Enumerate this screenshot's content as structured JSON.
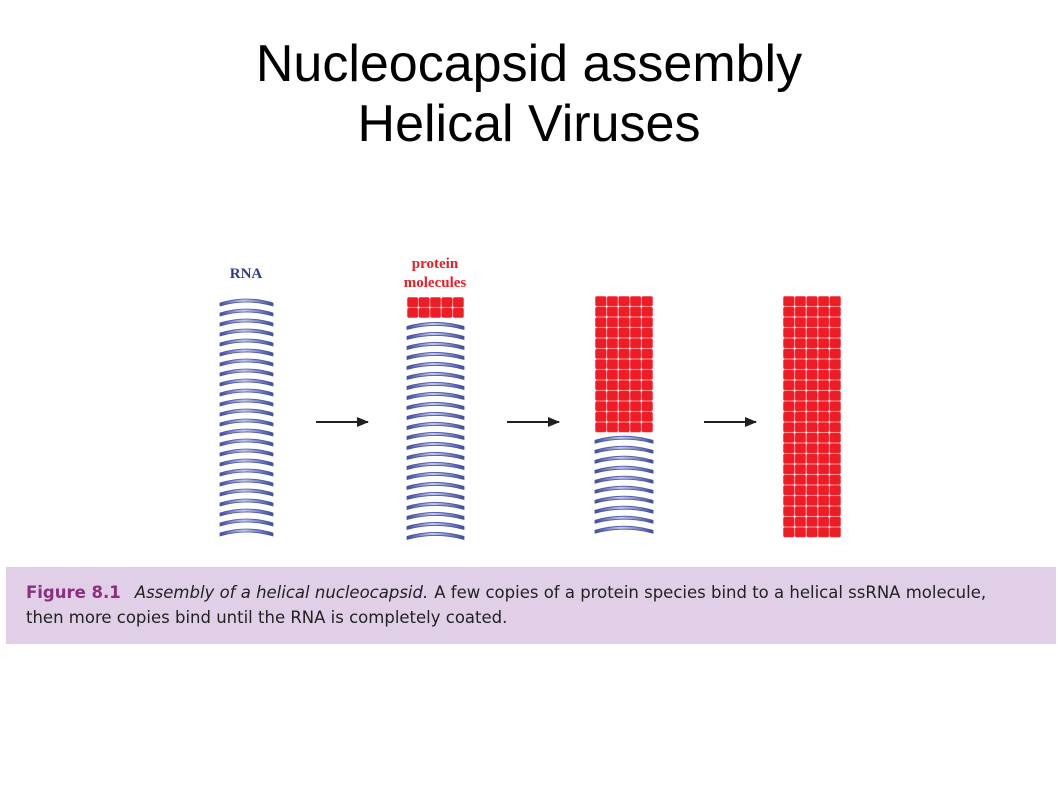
{
  "slide": {
    "title_line1": "Nucleocapsid assembly",
    "title_line2": "Helical Viruses"
  },
  "figure": {
    "label_rna": "RNA",
    "label_protein_line1": "protein",
    "label_protein_line2": "molecules",
    "stages": [
      {
        "coat_fraction": 0.0
      },
      {
        "coat_fraction": 0.08
      },
      {
        "coat_fraction": 0.55
      },
      {
        "coat_fraction": 1.0
      }
    ],
    "colors": {
      "rna": "#4a56a8",
      "rna_light": "#c3c8ea",
      "protein": "#ee1c25",
      "label_rna": "#2b3990",
      "label_protein": "#e81e25",
      "arrow": "#231f20"
    }
  },
  "caption": {
    "figure_number": "Figure 8.1",
    "figure_title": "Assembly of a helical nucleocapsid.",
    "text_line1": "A few copies of a protein species bind to a helical ssRNA molecule,",
    "text_line2": "then more copies bind until the RNA is completely coated.",
    "background": "#e0cfe6",
    "number_color": "#8a2f82"
  }
}
